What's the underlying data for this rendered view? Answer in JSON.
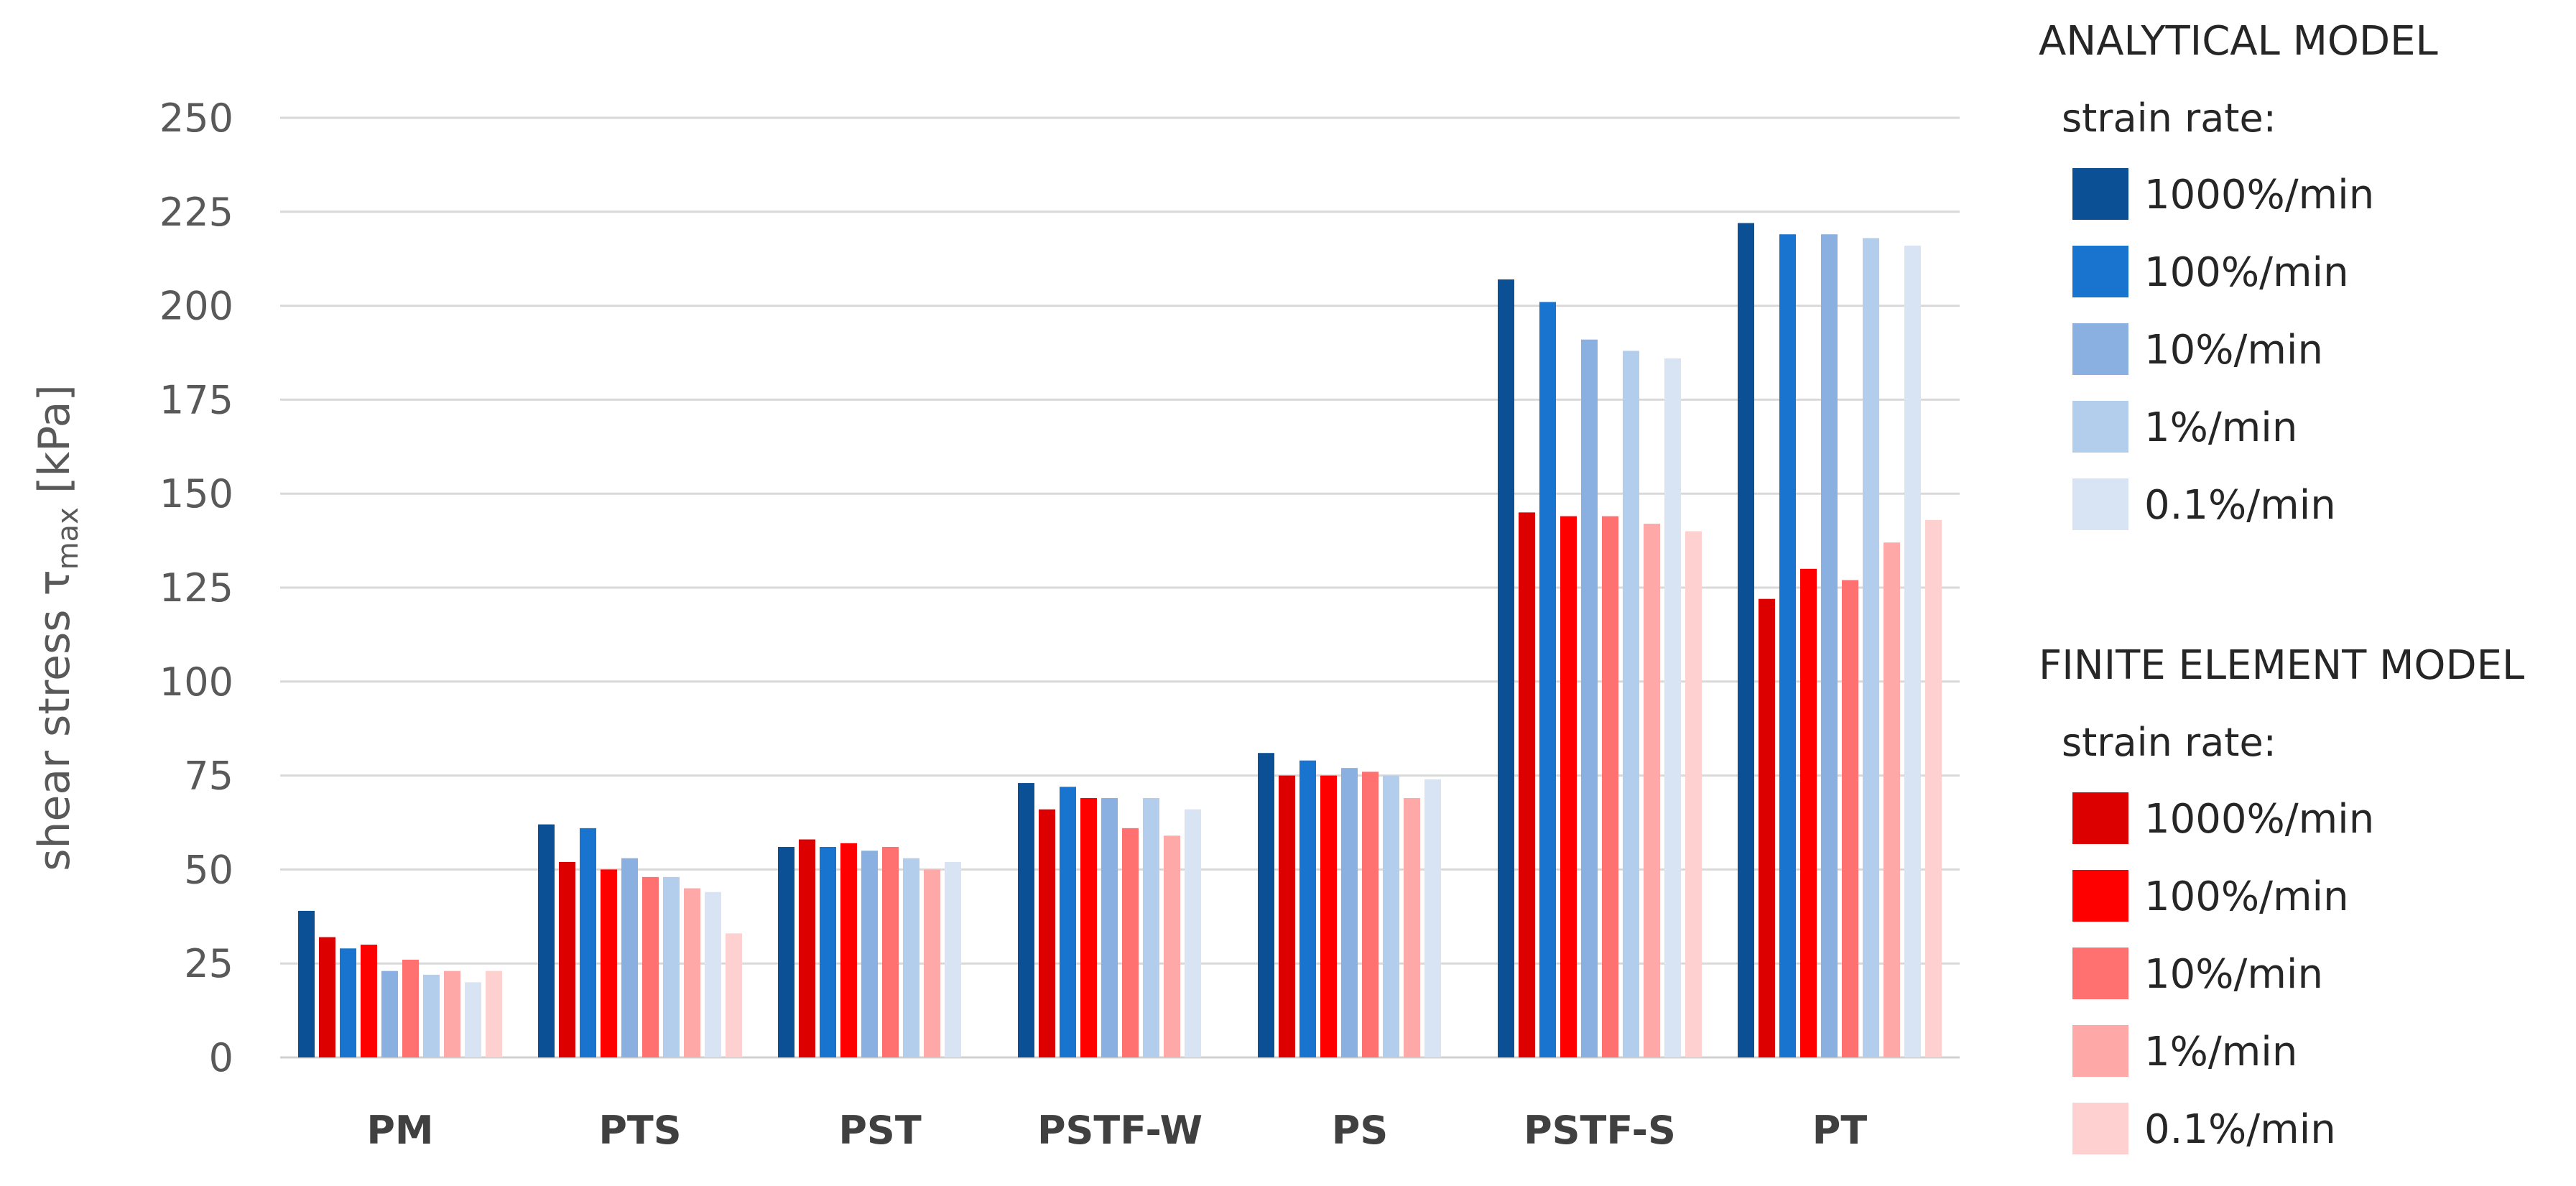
{
  "chart_data": {
    "type": "bar",
    "title": "",
    "xlabel": "",
    "ylabel": "shear stress τ",
    "ylabel_sub": "max",
    "ylabel_unit": " [kPa]",
    "ylim": [
      0,
      250
    ],
    "yticks": [
      0,
      25,
      50,
      75,
      100,
      125,
      150,
      175,
      200,
      225,
      250
    ],
    "grid": true,
    "categories": [
      "PM",
      "PTS",
      "PST",
      "PSTF-W",
      "PS",
      "PSTF-S",
      "PT"
    ],
    "legend_groups": [
      {
        "heading": "ANALYTICAL MODEL",
        "subheading": "strain rate:",
        "series": [
          {
            "name": "1000%/min",
            "color": "#0B4F94",
            "values": [
              39,
              62,
              56,
              73,
              81,
              207,
              222
            ]
          },
          {
            "name": "100%/min",
            "color": "#1874CF",
            "values": [
              29,
              61,
              56,
              72,
              79,
              201,
              219
            ]
          },
          {
            "name": "10%/min",
            "color": "#8AB0E2",
            "values": [
              23,
              53,
              55,
              69,
              77,
              191,
              219
            ]
          },
          {
            "name": "1%/min",
            "color": "#B3CDEC",
            "values": [
              22,
              48,
              53,
              69,
              75,
              188,
              218
            ]
          },
          {
            "name": "0.1%/min",
            "color": "#D8E4F4",
            "values": [
              20,
              44,
              52,
              66,
              74,
              186,
              216
            ]
          }
        ]
      },
      {
        "heading": "FINITE ELEMENT MODEL",
        "subheading": "strain rate:",
        "series": [
          {
            "name": "1000%/min",
            "color": "#DC0000",
            "values": [
              32,
              52,
              58,
              66,
              75,
              145,
              122
            ]
          },
          {
            "name": "100%/min",
            "color": "#FF0000",
            "values": [
              30,
              50,
              57,
              69,
              75,
              144,
              130
            ]
          },
          {
            "name": "10%/min",
            "color": "#FF7070",
            "values": [
              26,
              48,
              56,
              61,
              76,
              144,
              127
            ]
          },
          {
            "name": "1%/min",
            "color": "#FFA8A8",
            "values": [
              23,
              45,
              50,
              59,
              69,
              142,
              137
            ]
          },
          {
            "name": "0.1%/min",
            "color": "#FFD0D0",
            "values": [
              23,
              33,
              0,
              0,
              0,
              140,
              143
            ]
          }
        ]
      }
    ],
    "bar_order": [
      [
        0,
        0
      ],
      [
        1,
        0
      ],
      [
        0,
        1
      ],
      [
        1,
        1
      ],
      [
        0,
        2
      ],
      [
        1,
        2
      ],
      [
        0,
        3
      ],
      [
        1,
        3
      ],
      [
        0,
        4
      ],
      [
        1,
        4
      ]
    ]
  },
  "colors": {
    "axis": "#d0d0d0",
    "grid": "#d9d9d9"
  }
}
